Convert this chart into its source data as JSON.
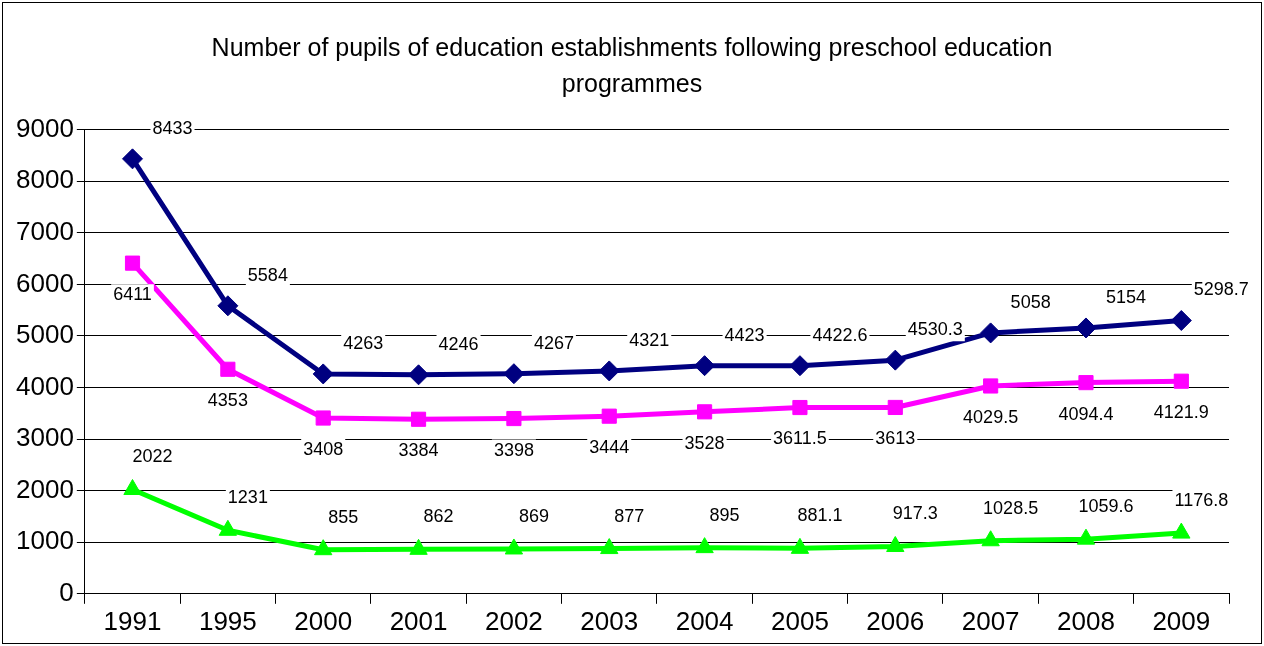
{
  "chart_data": {
    "type": "line",
    "title": "Number of pupils of education establishments following preschool education programmes",
    "categories": [
      "1991",
      "1995",
      "2000",
      "2001",
      "2002",
      "2003",
      "2004",
      "2005",
      "2006",
      "2007",
      "2008",
      "2009"
    ],
    "series": [
      {
        "color": "#000080",
        "marker": "diamond",
        "values": [
          8433,
          5584,
          4263,
          4246,
          4267,
          4321,
          4423,
          4422.6,
          4530.3,
          5058,
          5154,
          5298.7
        ]
      },
      {
        "color": "#ff00ff",
        "marker": "square",
        "values": [
          6411,
          4353,
          3408,
          3384,
          3398,
          3444,
          3528,
          3611.5,
          3613,
          4029.5,
          4094.4,
          4121.9
        ]
      },
      {
        "color": "#00ff00",
        "marker": "triangle",
        "values": [
          2022,
          1231,
          855,
          862,
          869,
          877,
          895,
          881.1,
          917.3,
          1028.5,
          1059.6,
          1176.8
        ]
      }
    ],
    "ylim": [
      0,
      9000
    ],
    "yticks": [
      0,
      1000,
      2000,
      3000,
      4000,
      5000,
      6000,
      7000,
      8000,
      9000
    ],
    "grid": "y",
    "legend": false,
    "data_labels": true,
    "line_style": "solid"
  }
}
